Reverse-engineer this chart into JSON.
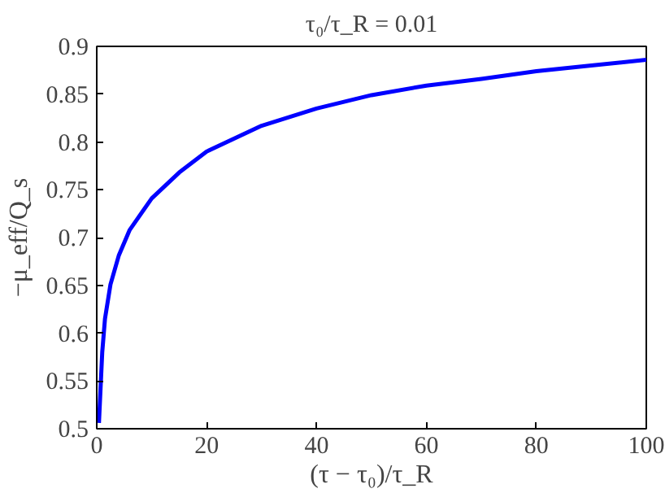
{
  "chart_data": {
    "type": "line",
    "title": "τ₀/τ_R = 0.01",
    "xlabel": "(τ − τ₀)/τ_R",
    "ylabel": "−μ_eff/Q_s",
    "x": [
      0.4,
      1,
      1.5,
      2.5,
      4,
      6,
      10,
      15,
      20,
      30,
      40,
      50,
      60,
      70,
      80,
      90,
      100
    ],
    "series": [
      {
        "color": "#0000ff",
        "values": [
          0.506,
          0.58,
          0.615,
          0.651,
          0.681,
          0.708,
          0.741,
          0.768,
          0.79,
          0.817,
          0.835,
          0.849,
          0.859,
          0.866,
          0.874,
          0.88,
          0.886
        ]
      }
    ],
    "xlim": [
      0,
      100
    ],
    "ylim": [
      0.5,
      0.9
    ],
    "xticks": [
      0,
      20,
      40,
      60,
      80,
      100
    ],
    "yticks": [
      0.5,
      0.55,
      0.6,
      0.65,
      0.7,
      0.75,
      0.8,
      0.85,
      0.9
    ],
    "grid": false,
    "marker": "none",
    "line_style": "solid"
  }
}
